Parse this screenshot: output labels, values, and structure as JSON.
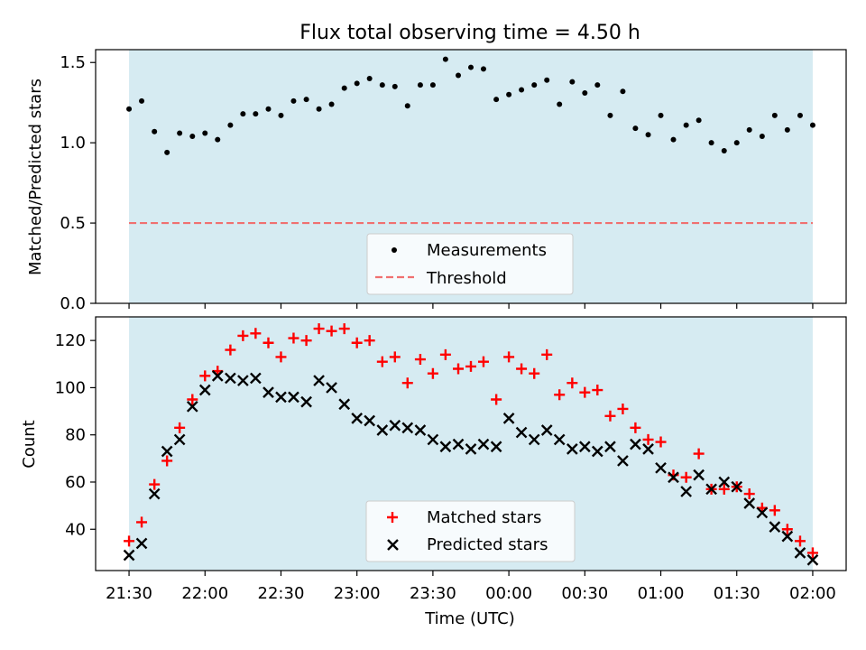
{
  "chart_data": [
    {
      "type": "scatter",
      "title": "Flux total observing time = 4.50 h",
      "xlabel": "",
      "ylabel": "Matched/Predicted stars",
      "xlim_hours": [
        21.28,
        26.22
      ],
      "ylim": [
        0,
        1.58
      ],
      "yticks": [
        0.0,
        0.5,
        1.0,
        1.5
      ],
      "ytick_labels": [
        "0.0",
        "0.5",
        "1.0",
        "1.5"
      ],
      "shaded_span_hours": [
        21.5,
        26.0
      ],
      "shade_color": "#add8e6",
      "threshold": {
        "label": "Threshold",
        "value": 0.5,
        "color": "#f07070"
      },
      "series": [
        {
          "name": "Measurements",
          "marker": "dot",
          "color": "#000000",
          "x": [
            21.5,
            21.583,
            21.667,
            21.75,
            21.833,
            21.917,
            22.0,
            22.083,
            22.167,
            22.25,
            22.333,
            22.417,
            22.5,
            22.583,
            22.667,
            22.75,
            22.833,
            22.917,
            23.0,
            23.083,
            23.167,
            23.25,
            23.333,
            23.417,
            23.5,
            23.583,
            23.667,
            23.75,
            23.833,
            23.917,
            24.0,
            24.083,
            24.167,
            24.25,
            24.333,
            24.417,
            24.5,
            24.583,
            24.667,
            24.75,
            24.833,
            24.917,
            25.0,
            25.083,
            25.167,
            25.25,
            25.333,
            25.417,
            25.5,
            25.583,
            25.667,
            25.75,
            25.833,
            25.917,
            26.0
          ],
          "y": [
            1.21,
            1.26,
            1.07,
            0.94,
            1.06,
            1.04,
            1.06,
            1.02,
            1.11,
            1.18,
            1.18,
            1.21,
            1.17,
            1.26,
            1.27,
            1.21,
            1.24,
            1.34,
            1.37,
            1.4,
            1.36,
            1.35,
            1.23,
            1.36,
            1.36,
            1.52,
            1.42,
            1.47,
            1.46,
            1.27,
            1.3,
            1.33,
            1.36,
            1.39,
            1.24,
            1.38,
            1.31,
            1.36,
            1.17,
            1.32,
            1.09,
            1.05,
            1.17,
            1.02,
            1.11,
            1.14,
            1.0,
            0.95,
            1.0,
            1.08,
            1.04,
            1.17,
            1.08,
            1.17,
            1.11
          ]
        }
      ],
      "legend": {
        "placement": "lower-center",
        "entries": [
          "Measurements",
          "Threshold"
        ]
      }
    },
    {
      "type": "scatter",
      "title": "",
      "xlabel": "Time (UTC)",
      "ylabel": "Count",
      "xlim_hours": [
        21.28,
        26.22
      ],
      "ylim": [
        22.5,
        130
      ],
      "yticks": [
        40,
        60,
        80,
        100,
        120
      ],
      "ytick_labels": [
        "40",
        "60",
        "80",
        "100",
        "120"
      ],
      "xticks_hours": [
        21.5,
        22.0,
        22.5,
        23.0,
        23.5,
        24.0,
        24.5,
        25.0,
        25.5,
        26.0
      ],
      "xtick_labels": [
        "21:30",
        "22:00",
        "22:30",
        "23:00",
        "23:30",
        "00:00",
        "00:30",
        "01:00",
        "01:30",
        "02:00"
      ],
      "shaded_span_hours": [
        21.5,
        26.0
      ],
      "shade_color": "#add8e6",
      "series": [
        {
          "name": "Matched stars",
          "marker": "plus",
          "color": "#ff0000",
          "x": [
            21.5,
            21.583,
            21.667,
            21.75,
            21.833,
            21.917,
            22.0,
            22.083,
            22.167,
            22.25,
            22.333,
            22.417,
            22.5,
            22.583,
            22.667,
            22.75,
            22.833,
            22.917,
            23.0,
            23.083,
            23.167,
            23.25,
            23.333,
            23.417,
            23.5,
            23.583,
            23.667,
            23.75,
            23.833,
            23.917,
            24.0,
            24.083,
            24.167,
            24.25,
            24.333,
            24.417,
            24.5,
            24.583,
            24.667,
            24.75,
            24.833,
            24.917,
            25.0,
            25.083,
            25.167,
            25.25,
            25.333,
            25.417,
            25.5,
            25.583,
            25.667,
            25.75,
            25.833,
            25.917,
            26.0
          ],
          "y": [
            35,
            43,
            59,
            69,
            83,
            95,
            105,
            107,
            116,
            122,
            123,
            119,
            113,
            121,
            120,
            125,
            124,
            125,
            119,
            120,
            111,
            113,
            102,
            112,
            106,
            114,
            108,
            109,
            111,
            95,
            113,
            108,
            106,
            114,
            97,
            102,
            98,
            99,
            88,
            91,
            83,
            78,
            77,
            63,
            62,
            72,
            57,
            57,
            58,
            55,
            49,
            48,
            40,
            35,
            30
          ]
        },
        {
          "name": "Predicted stars",
          "marker": "x",
          "color": "#000000",
          "x": [
            21.5,
            21.583,
            21.667,
            21.75,
            21.833,
            21.917,
            22.0,
            22.083,
            22.167,
            22.25,
            22.333,
            22.417,
            22.5,
            22.583,
            22.667,
            22.75,
            22.833,
            22.917,
            23.0,
            23.083,
            23.167,
            23.25,
            23.333,
            23.417,
            23.5,
            23.583,
            23.667,
            23.75,
            23.833,
            23.917,
            24.0,
            24.083,
            24.167,
            24.25,
            24.333,
            24.417,
            24.5,
            24.583,
            24.667,
            24.75,
            24.833,
            24.917,
            25.0,
            25.083,
            25.167,
            25.25,
            25.333,
            25.417,
            25.5,
            25.583,
            25.667,
            25.75,
            25.833,
            25.917,
            26.0
          ],
          "y": [
            29,
            34,
            55,
            73,
            78,
            92,
            99,
            105,
            104,
            103,
            104,
            98,
            96,
            96,
            94,
            103,
            100,
            93,
            87,
            86,
            82,
            84,
            83,
            82,
            78,
            75,
            76,
            74,
            76,
            75,
            87,
            81,
            78,
            82,
            78,
            74,
            75,
            73,
            75,
            69,
            76,
            74,
            66,
            62,
            56,
            63,
            57,
            60,
            58,
            51,
            47,
            41,
            37,
            30,
            27
          ]
        }
      ],
      "legend": {
        "placement": "lower-center",
        "entries": [
          "Matched stars",
          "Predicted stars"
        ]
      }
    }
  ]
}
